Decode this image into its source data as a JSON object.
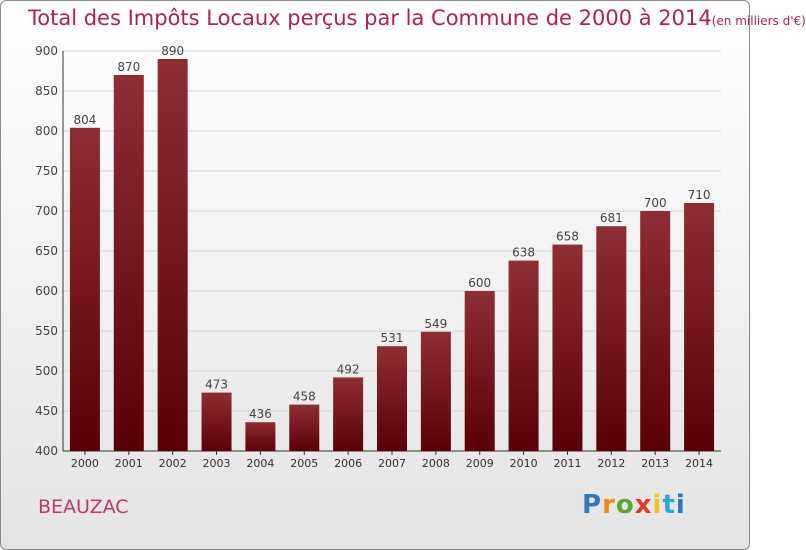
{
  "title": {
    "main": "Total des Impôts Locaux perçus par la Commune de 2000 à 2014",
    "unit": "(en milliers d'€)"
  },
  "commune": "BEAUZAC",
  "logo": {
    "text": "Proxiti",
    "letters": [
      "P",
      "r",
      "o",
      "x",
      "i",
      "t",
      "i"
    ]
  },
  "colors": {
    "bar_dark": "#5a0008",
    "bar_light": "#8e2e34",
    "title": "#b0224a",
    "commune": "#c0396e"
  },
  "chart_data": {
    "type": "bar",
    "title": "Total des Impôts Locaux perçus par la Commune de 2000 à 2014 (en milliers d'€)",
    "xlabel": "",
    "ylabel": "",
    "categories": [
      "2000",
      "2001",
      "2002",
      "2003",
      "2004",
      "2005",
      "2006",
      "2007",
      "2008",
      "2009",
      "2010",
      "2011",
      "2012",
      "2013",
      "2014"
    ],
    "values": [
      804,
      870,
      890,
      473,
      436,
      458,
      492,
      531,
      549,
      600,
      638,
      658,
      681,
      700,
      710
    ],
    "ylim": [
      400,
      900
    ],
    "yticks": [
      400,
      450,
      500,
      550,
      600,
      650,
      700,
      750,
      800,
      850,
      900
    ],
    "grid": true
  }
}
